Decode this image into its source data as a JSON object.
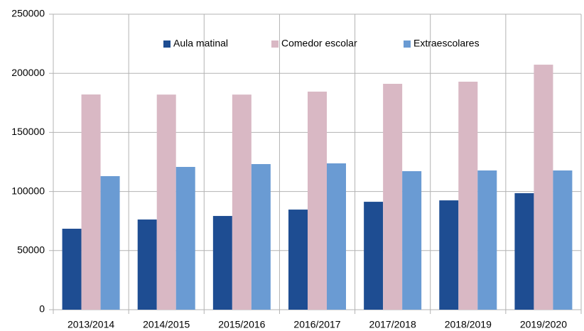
{
  "chart_data": {
    "type": "bar",
    "categories": [
      "2013/2014",
      "2014/2015",
      "2015/2016",
      "2016/2017",
      "2017/2018",
      "2018/2019",
      "2019/2020"
    ],
    "series": [
      {
        "name": "Aula matinal",
        "color": "#1e4d92",
        "values": [
          68500,
          76300,
          79300,
          84700,
          91300,
          92500,
          98600
        ]
      },
      {
        "name": "Comedor escolar",
        "color": "#d9b8c4",
        "values": [
          182100,
          182000,
          182000,
          184500,
          191100,
          192900,
          207300
        ]
      },
      {
        "name": "Extraescolares",
        "color": "#6a9bd3",
        "values": [
          113000,
          120800,
          123200,
          123800,
          117200,
          117800,
          117800
        ]
      }
    ],
    "ylim": [
      0,
      250000
    ],
    "yticks": [
      0,
      50000,
      100000,
      150000,
      200000,
      250000
    ],
    "grid": true,
    "legend": "top"
  }
}
